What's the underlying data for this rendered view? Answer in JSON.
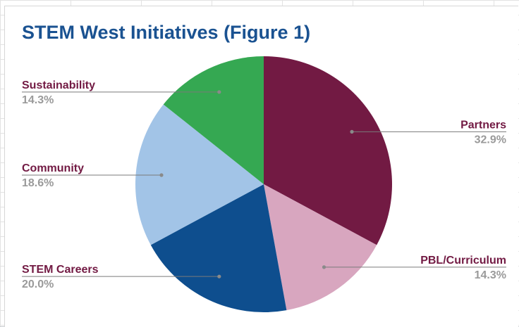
{
  "chart_data": {
    "type": "pie",
    "title": "STEM West Initiatives (Figure 1)",
    "slices": [
      {
        "label": "Partners",
        "value": 32.9,
        "display": "32.9%",
        "color": "#721a43",
        "label_side": "right"
      },
      {
        "label": "PBL/Curriculum",
        "value": 14.3,
        "display": "14.3%",
        "color": "#d8a6bf",
        "label_side": "right"
      },
      {
        "label": "STEM Careers",
        "value": 20.0,
        "display": "20.0%",
        "color": "#0e4e8e",
        "label_side": "left"
      },
      {
        "label": "Community",
        "value": 18.6,
        "display": "18.6%",
        "color": "#a2c4e7",
        "label_side": "left"
      },
      {
        "label": "Sustainability",
        "value": 14.3,
        "display": "14.3%",
        "color": "#35a852",
        "label_side": "left"
      }
    ],
    "start_angle_deg": 0,
    "direction": "clockwise",
    "label_color": "#721a43",
    "value_color": "#9a9a9a"
  }
}
